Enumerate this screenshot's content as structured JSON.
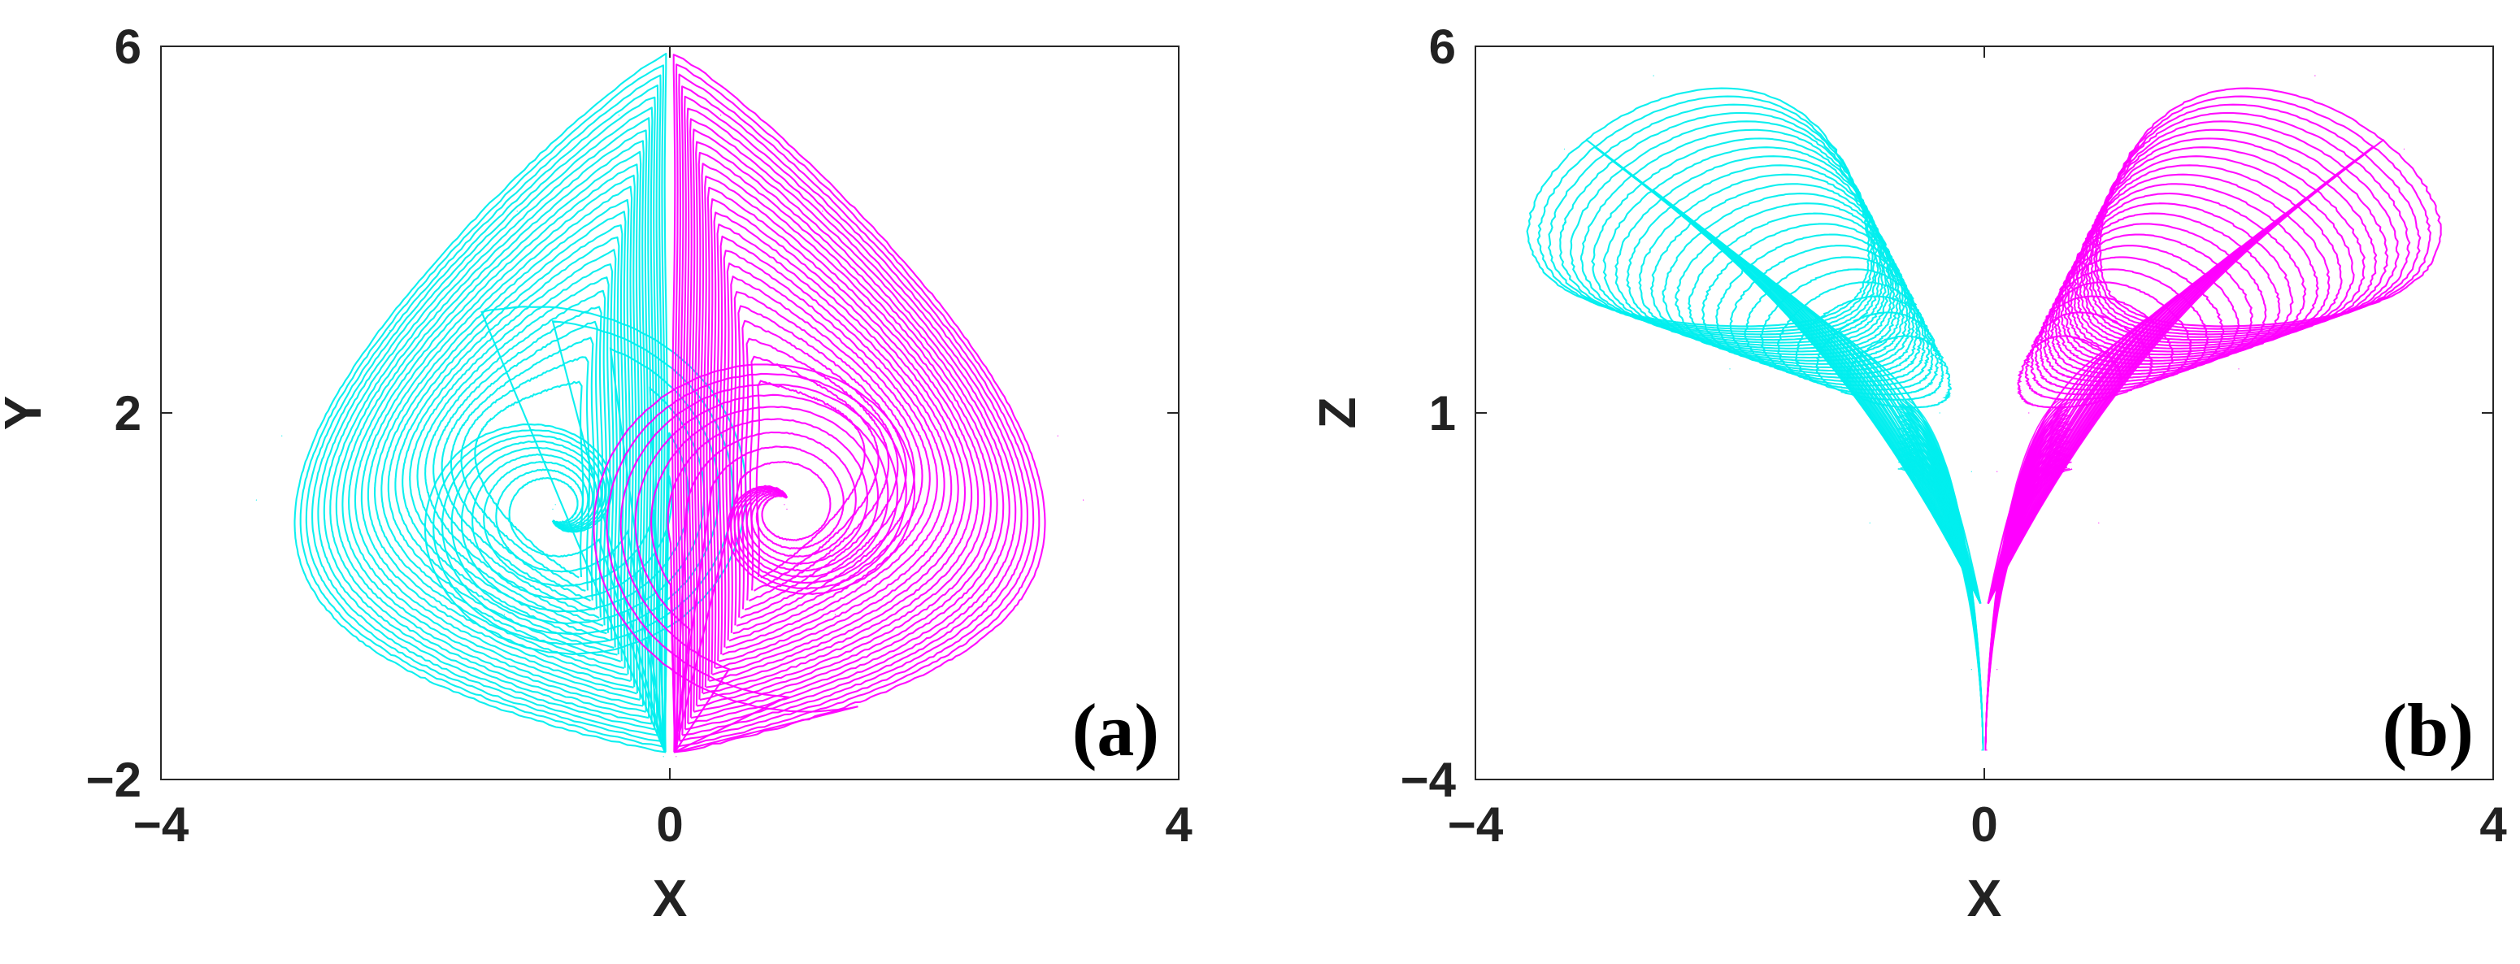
{
  "chart_data": [
    {
      "type": "line",
      "panel_label": "(a)",
      "xlabel": "X",
      "ylabel": "Y",
      "xlim": [
        -4,
        4
      ],
      "ylim": [
        -2,
        6
      ],
      "xticks": [
        "−4",
        "0",
        "4"
      ],
      "yticks": [
        "−2",
        "2",
        "6"
      ],
      "grid": false,
      "legend": "none",
      "series": [
        {
          "color": "#00EEEE",
          "shape": "teardrop-left",
          "values": [
            [
              -0.05,
              -1.75
            ],
            [
              -0.45,
              -1.0
            ],
            [
              -1.3,
              -0.2
            ],
            [
              -2.4,
              0.4
            ],
            [
              -3.25,
              1.05
            ],
            [
              -3.05,
              1.75
            ],
            [
              -2.2,
              2.9
            ],
            [
              -1.2,
              4.2
            ],
            [
              -0.4,
              5.25
            ],
            [
              -0.05,
              5.75
            ],
            [
              -0.9,
              1.0
            ],
            [
              -0.92,
              0.95
            ]
          ]
        },
        {
          "color": "#FF00FF",
          "shape": "teardrop-right",
          "values": [
            [
              0.05,
              -1.75
            ],
            [
              0.45,
              -1.0
            ],
            [
              1.3,
              -0.2
            ],
            [
              2.4,
              0.4
            ],
            [
              3.25,
              1.05
            ],
            [
              3.05,
              1.75
            ],
            [
              2.2,
              2.9
            ],
            [
              1.2,
              4.2
            ],
            [
              0.4,
              5.25
            ],
            [
              0.05,
              5.75
            ],
            [
              0.9,
              1.0
            ],
            [
              0.92,
              0.95
            ]
          ]
        }
      ]
    },
    {
      "type": "line",
      "panel_label": "(b)",
      "xlabel": "X",
      "ylabel": "Z",
      "xlim": [
        -4,
        4
      ],
      "ylim": [
        -4,
        6
      ],
      "xticks": [
        "−4",
        "0",
        "4"
      ],
      "yticks": [
        "−4",
        "1",
        "6"
      ],
      "grid": false,
      "legend": "none",
      "series": [
        {
          "color": "#00EEEE",
          "shape": "wing-left",
          "values": [
            [
              -0.02,
              -3.6
            ],
            [
              -0.1,
              -2.5
            ],
            [
              -0.9,
              -0.5
            ],
            [
              -2.0,
              1.6
            ],
            [
              -3.3,
              3.6
            ],
            [
              -3.3,
              4.6
            ],
            [
              -2.6,
              5.6
            ],
            [
              -1.2,
              4.2
            ],
            [
              -0.35,
              1.0
            ],
            [
              -0.1,
              0.2
            ]
          ]
        },
        {
          "color": "#FF00FF",
          "shape": "wing-right",
          "values": [
            [
              0.02,
              -3.6
            ],
            [
              0.1,
              -2.5
            ],
            [
              0.9,
              -0.5
            ],
            [
              2.0,
              1.6
            ],
            [
              3.3,
              3.6
            ],
            [
              3.3,
              4.6
            ],
            [
              2.6,
              5.6
            ],
            [
              1.2,
              4.2
            ],
            [
              0.35,
              1.0
            ],
            [
              0.1,
              0.2
            ]
          ]
        }
      ]
    }
  ]
}
